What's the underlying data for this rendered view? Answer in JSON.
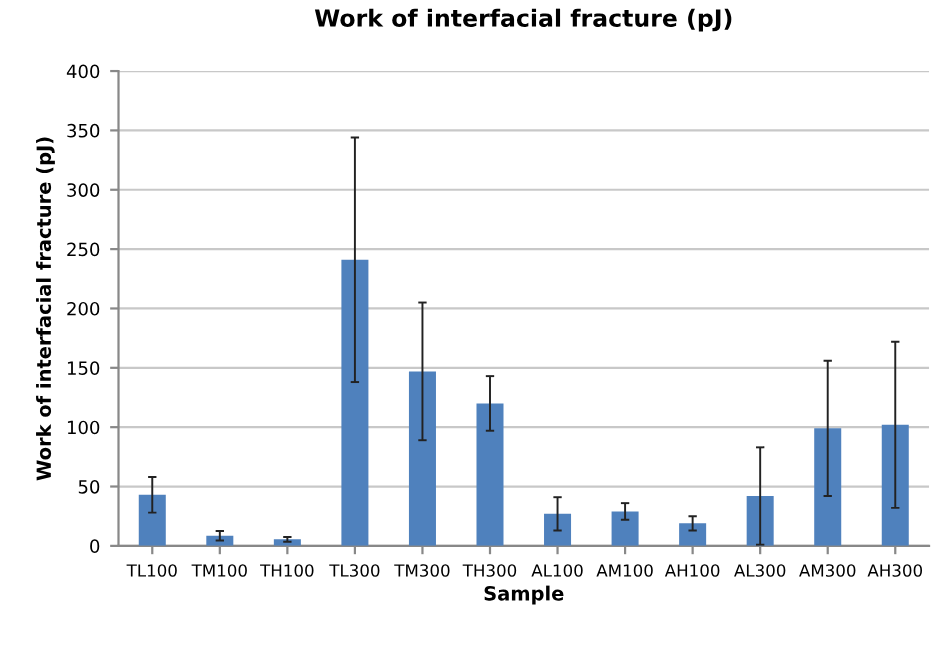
{
  "chart_data": {
    "type": "bar",
    "title": "Work of interfacial fracture (pJ)",
    "xlabel": "Sample",
    "ylabel": "Work of interfacial fracture (pJ)",
    "categories": [
      "TL100",
      "TM100",
      "TH100",
      "TL300",
      "TM300",
      "TH300",
      "AL100",
      "AM100",
      "AH100",
      "AL300",
      "AM300",
      "AH300"
    ],
    "values": [
      43,
      8.5,
      5.5,
      241,
      147,
      120,
      27,
      29,
      19,
      42,
      99,
      102
    ],
    "errors": [
      15,
      4,
      2,
      103,
      58,
      23,
      14,
      7,
      6,
      41,
      57,
      70
    ],
    "color": "#4f81bd",
    "ylim": [
      0,
      400
    ],
    "yticks": [
      0,
      50,
      100,
      150,
      200,
      250,
      300,
      350,
      400
    ],
    "grid": "y"
  }
}
